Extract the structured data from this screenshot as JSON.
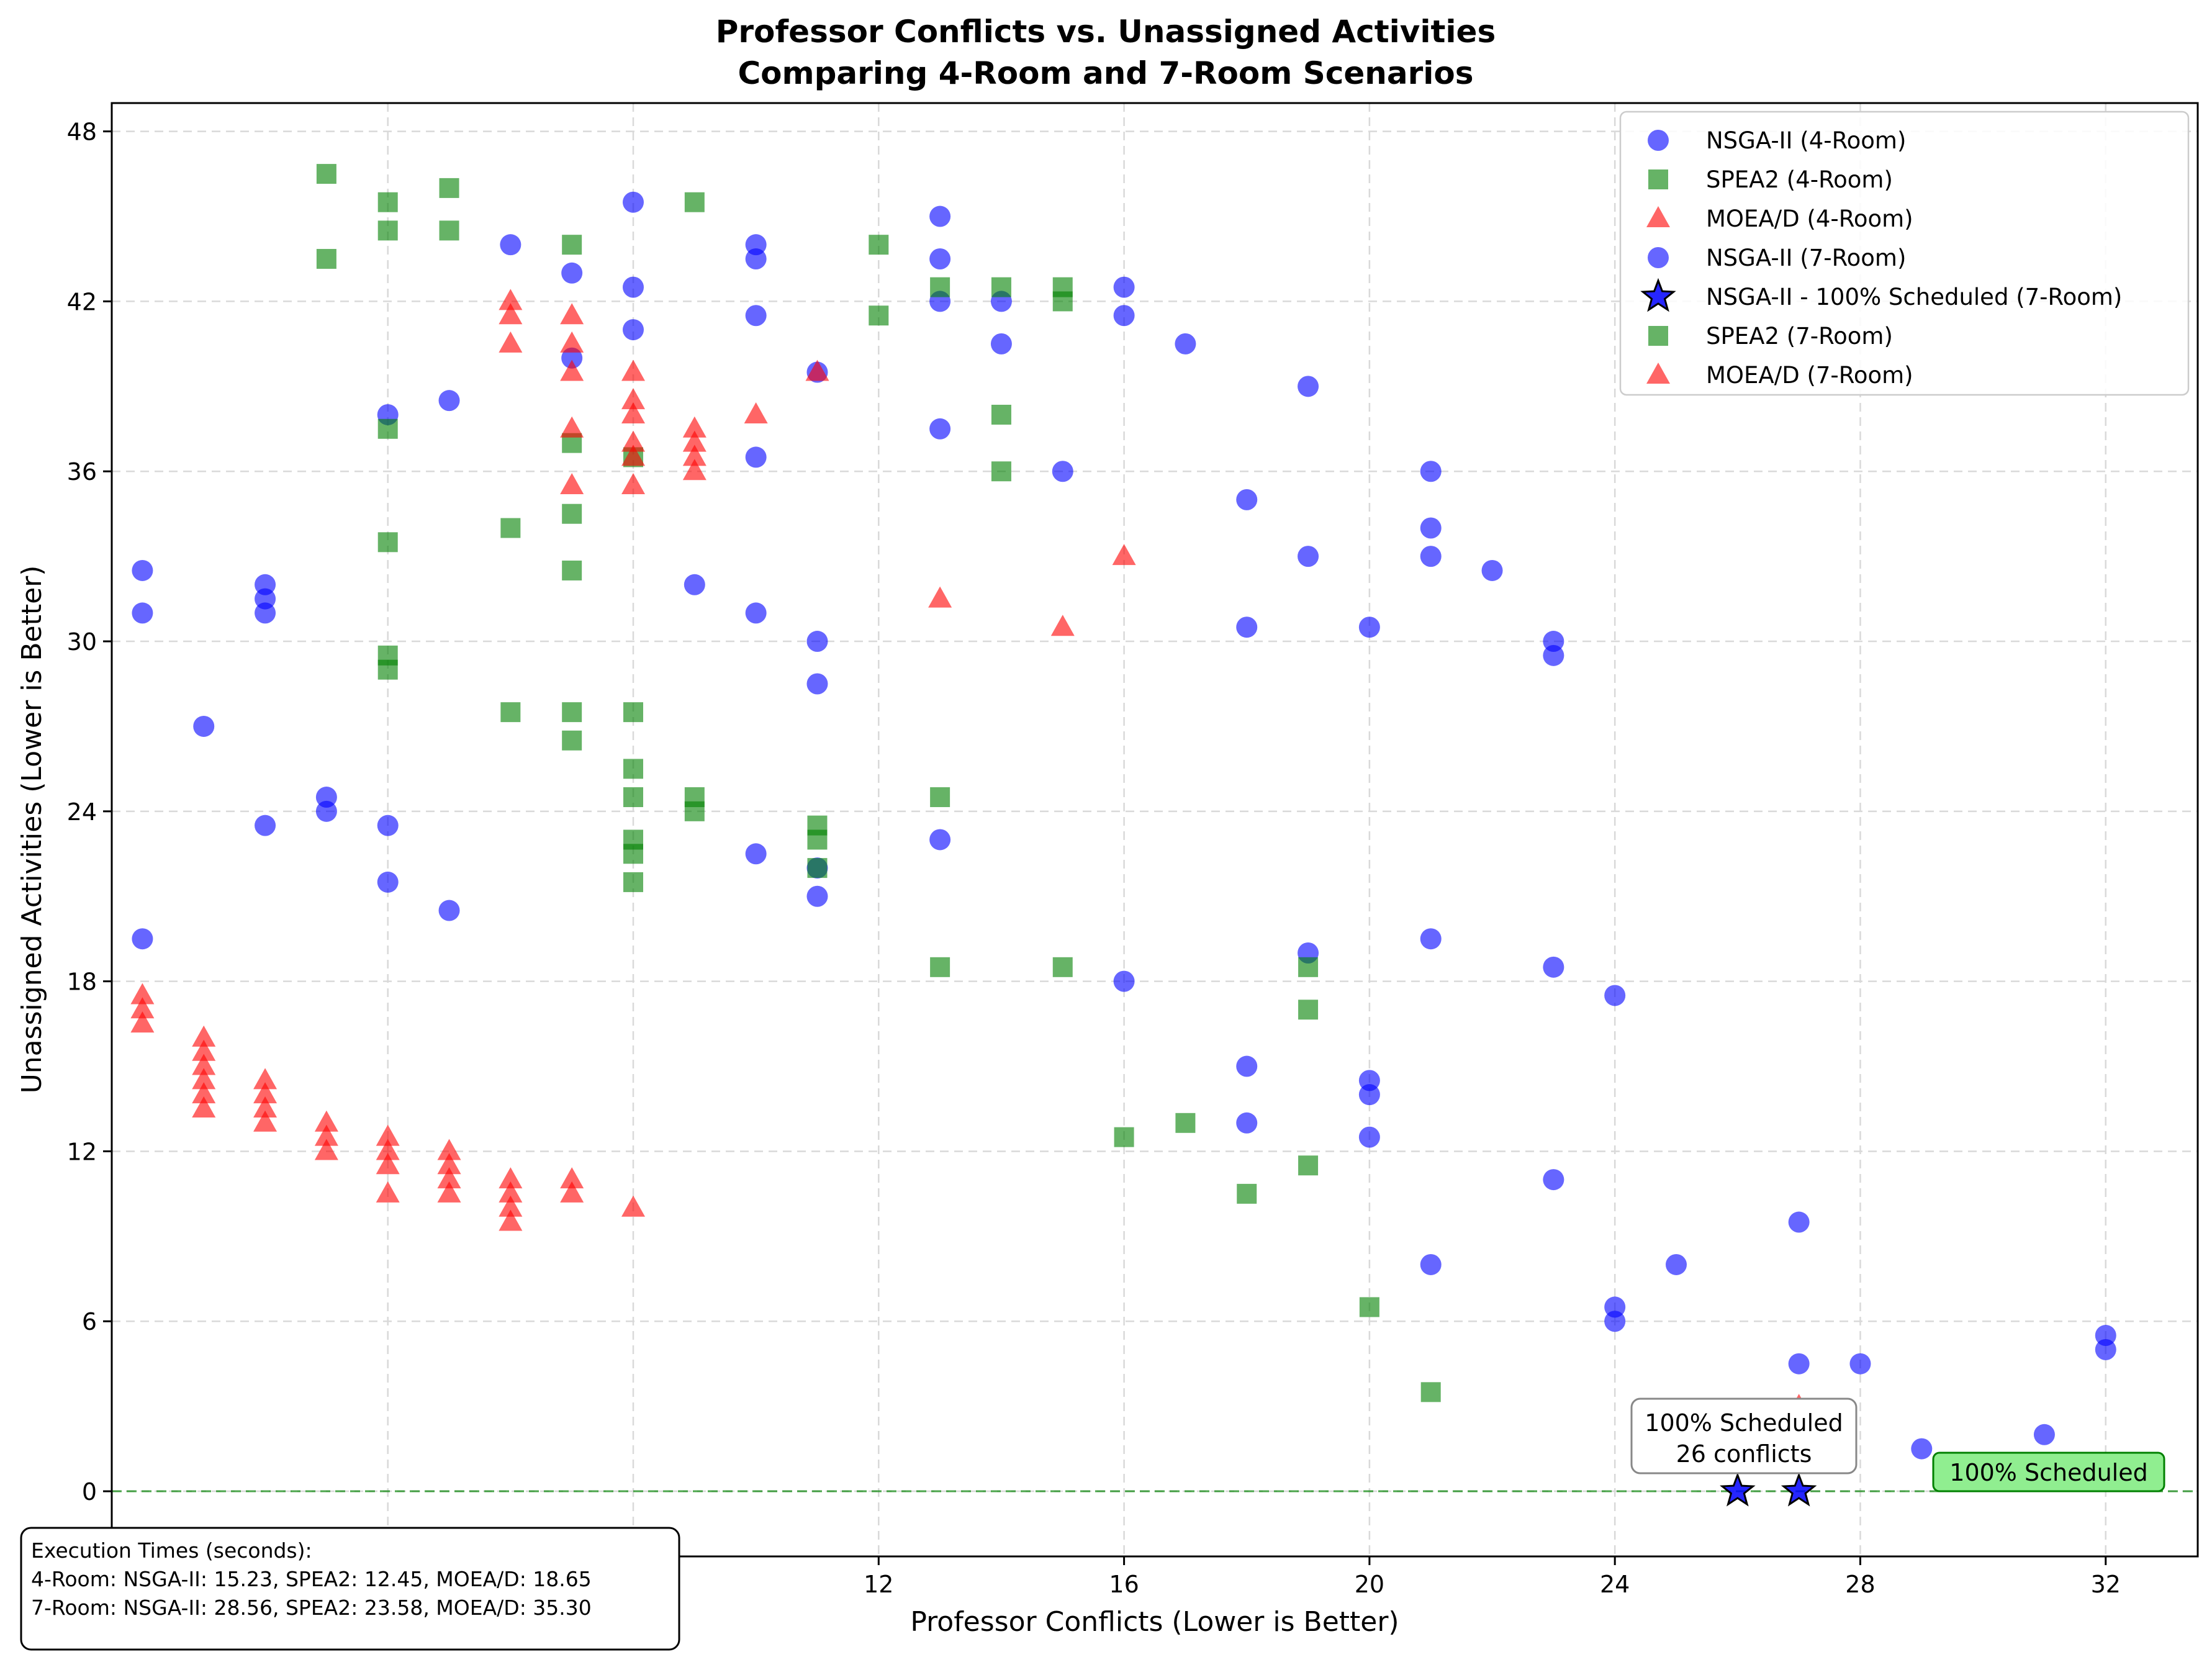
{
  "chart_data": {
    "type": "scatter",
    "title": "Professor Conflicts vs. Unassigned Activities",
    "subtitle": "Comparing 4-Room and 7-Room Scenarios",
    "xlabel": "Professor Conflicts (Lower is Better)",
    "ylabel": "Unassigned Activities (Lower is Better)",
    "xlim": [
      -0.5,
      33.5
    ],
    "ylim": [
      -2.3,
      49
    ],
    "xticks": [
      4,
      8,
      12,
      16,
      20,
      24,
      28,
      32
    ],
    "xtick_labels": [
      "4",
      "8",
      "12",
      "16",
      "20",
      "24",
      "28",
      "32"
    ],
    "yticks": [
      0,
      6,
      12,
      18,
      24,
      30,
      36,
      42,
      48
    ],
    "ytick_labels": [
      "0",
      "6",
      "12",
      "18",
      "24",
      "30",
      "36",
      "42",
      "48"
    ],
    "grid": true,
    "legend_position": "top-right",
    "series": [
      {
        "name": "NSGA-II (4-Room)",
        "marker": "circle",
        "color": "#0000ff",
        "points": [
          [
            0,
            32.5
          ],
          [
            0,
            31
          ],
          [
            2,
            32
          ],
          [
            2,
            31.5
          ],
          [
            2,
            31
          ],
          [
            4,
            38
          ],
          [
            5,
            38.5
          ],
          [
            6,
            44
          ],
          [
            7,
            43
          ],
          [
            7,
            40
          ],
          [
            8,
            42.5
          ],
          [
            8,
            41
          ],
          [
            8,
            45.5
          ],
          [
            10,
            44
          ],
          [
            10,
            43.5
          ],
          [
            10,
            41.5
          ],
          [
            11,
            39.5
          ],
          [
            13,
            45
          ],
          [
            13,
            43.5
          ],
          [
            13,
            42
          ],
          [
            14,
            42
          ],
          [
            14,
            40.5
          ],
          [
            16,
            42.5
          ],
          [
            16,
            41.5
          ],
          [
            17,
            40.5
          ],
          [
            13,
            37.5
          ],
          [
            15,
            36
          ],
          [
            10,
            36.5
          ],
          [
            18,
            35
          ],
          [
            18,
            30.5
          ],
          [
            19,
            39
          ],
          [
            19,
            33
          ],
          [
            20,
            30.5
          ],
          [
            21,
            36
          ],
          [
            21,
            34
          ],
          [
            21,
            33
          ],
          [
            22,
            32.5
          ],
          [
            23,
            30
          ],
          [
            23,
            29.5
          ],
          [
            9,
            32
          ],
          [
            10,
            31
          ],
          [
            11,
            30
          ],
          [
            11,
            28.5
          ]
        ]
      },
      {
        "name": "SPEA2 (4-Room)",
        "marker": "square",
        "color": "#008000",
        "points": [
          [
            3,
            46.5
          ],
          [
            3,
            43.5
          ],
          [
            4,
            45.5
          ],
          [
            4,
            44.5
          ],
          [
            4,
            37.5
          ],
          [
            4,
            33.5
          ],
          [
            5,
            46
          ],
          [
            5,
            44.5
          ],
          [
            6,
            34
          ],
          [
            7,
            44
          ],
          [
            7,
            37
          ],
          [
            7,
            34.5
          ],
          [
            7,
            32.5
          ],
          [
            8,
            36.5
          ],
          [
            9,
            45.5
          ],
          [
            12,
            44
          ],
          [
            12,
            41.5
          ],
          [
            13,
            42.5
          ],
          [
            14,
            42.5
          ],
          [
            14,
            38
          ],
          [
            14,
            36
          ],
          [
            15,
            42.5
          ],
          [
            15,
            42
          ]
        ]
      },
      {
        "name": "MOEA/D (4-Room)",
        "marker": "triangle",
        "color": "#ff0000",
        "points": [
          [
            6,
            42
          ],
          [
            6,
            41.5
          ],
          [
            6,
            40.5
          ],
          [
            7,
            41.5
          ],
          [
            7,
            40.5
          ],
          [
            7,
            39.5
          ],
          [
            7,
            37.5
          ],
          [
            7,
            35.5
          ],
          [
            8,
            39.5
          ],
          [
            8,
            38.5
          ],
          [
            8,
            38
          ],
          [
            8,
            37
          ],
          [
            8,
            36.5
          ],
          [
            8,
            35.5
          ],
          [
            9,
            37.5
          ],
          [
            9,
            37
          ],
          [
            9,
            36.5
          ],
          [
            9,
            36
          ],
          [
            10,
            38
          ],
          [
            11,
            39.5
          ],
          [
            13,
            31.5
          ],
          [
            15,
            30.5
          ],
          [
            16,
            33
          ]
        ]
      },
      {
        "name": "NSGA-II (7-Room)",
        "marker": "circle",
        "color": "#0000ff",
        "points": [
          [
            0,
            19.5
          ],
          [
            1,
            27
          ],
          [
            2,
            23.5
          ],
          [
            3,
            24.5
          ],
          [
            3,
            24
          ],
          [
            4,
            23.5
          ],
          [
            4,
            21.5
          ],
          [
            5,
            20.5
          ],
          [
            10,
            22.5
          ],
          [
            11,
            22
          ],
          [
            11,
            21
          ],
          [
            13,
            23
          ],
          [
            16,
            18
          ],
          [
            18,
            15
          ],
          [
            18,
            13
          ],
          [
            19,
            19
          ],
          [
            20,
            14.5
          ],
          [
            20,
            14
          ],
          [
            20,
            12.5
          ],
          [
            21,
            19.5
          ],
          [
            21,
            8
          ],
          [
            23,
            18.5
          ],
          [
            23,
            11
          ],
          [
            24,
            17.5
          ],
          [
            24,
            6.5
          ],
          [
            24,
            6
          ],
          [
            25,
            8
          ],
          [
            27,
            9.5
          ],
          [
            27,
            4.5
          ],
          [
            28,
            4.5
          ],
          [
            29,
            1.5
          ],
          [
            31,
            2
          ],
          [
            32,
            5.5
          ],
          [
            32,
            5
          ]
        ]
      },
      {
        "name": "NSGA-II - 100% Scheduled (7-Room)",
        "marker": "star",
        "color": "#0000ff",
        "points": [
          [
            26,
            0
          ],
          [
            27,
            0
          ]
        ]
      },
      {
        "name": "SPEA2 (7-Room)",
        "marker": "square",
        "color": "#008000",
        "points": [
          [
            4,
            29.5
          ],
          [
            4,
            29
          ],
          [
            6,
            27.5
          ],
          [
            7,
            27.5
          ],
          [
            7,
            26.5
          ],
          [
            8,
            27.5
          ],
          [
            8,
            25.5
          ],
          [
            8,
            24.5
          ],
          [
            8,
            23
          ],
          [
            8,
            22.5
          ],
          [
            8,
            21.5
          ],
          [
            9,
            24.5
          ],
          [
            9,
            24
          ],
          [
            11,
            23.5
          ],
          [
            11,
            23
          ],
          [
            11,
            22
          ],
          [
            13,
            24.5
          ],
          [
            13,
            18.5
          ],
          [
            15,
            18.5
          ],
          [
            16,
            12.5
          ],
          [
            17,
            13
          ],
          [
            18,
            10.5
          ],
          [
            19,
            18.5
          ],
          [
            19,
            17
          ],
          [
            19,
            11.5
          ],
          [
            20,
            6.5
          ],
          [
            21,
            3.5
          ]
        ]
      },
      {
        "name": "MOEA/D (7-Room)",
        "marker": "triangle",
        "color": "#ff0000",
        "points": [
          [
            0,
            17.5
          ],
          [
            0,
            17
          ],
          [
            0,
            16.5
          ],
          [
            1,
            16
          ],
          [
            1,
            15.5
          ],
          [
            1,
            15
          ],
          [
            1,
            14.5
          ],
          [
            1,
            14
          ],
          [
            1,
            13.5
          ],
          [
            2,
            14.5
          ],
          [
            2,
            14
          ],
          [
            2,
            13.5
          ],
          [
            2,
            13
          ],
          [
            3,
            13
          ],
          [
            3,
            12.5
          ],
          [
            3,
            12
          ],
          [
            4,
            12.5
          ],
          [
            4,
            12
          ],
          [
            4,
            11.5
          ],
          [
            4,
            10.5
          ],
          [
            5,
            12
          ],
          [
            5,
            11.5
          ],
          [
            5,
            11
          ],
          [
            5,
            10.5
          ],
          [
            6,
            11
          ],
          [
            6,
            10.5
          ],
          [
            6,
            10
          ],
          [
            6,
            9.5
          ],
          [
            7,
            11
          ],
          [
            7,
            10.5
          ],
          [
            8,
            10
          ],
          [
            27,
            3
          ]
        ]
      }
    ],
    "annotations": {
      "star_box": {
        "line1": "100% Scheduled",
        "line2": "26 conflicts",
        "x": 26,
        "y": 0
      },
      "green_box": {
        "text": "100% Scheduled"
      },
      "reference_line_y": 0
    },
    "execution_times": {
      "heading": "Execution Times (seconds):",
      "line_4room": "4-Room: NSGA-II: 15.23, SPEA2: 12.45, MOEA/D: 18.65",
      "line_7room": "7-Room: NSGA-II: 28.56, SPEA2: 23.58, MOEA/D: 35.30"
    }
  }
}
